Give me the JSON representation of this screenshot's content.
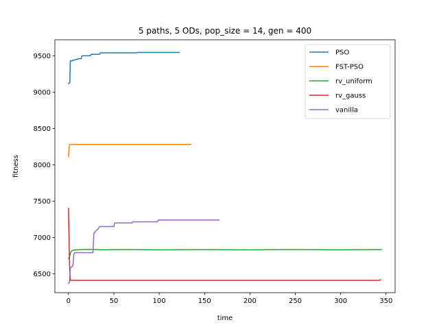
{
  "chart_data": {
    "type": "line",
    "title": "5 paths, 5 ODs, pop_size = 14, gen = 400",
    "xlabel": "time",
    "ylabel": "fitness",
    "xlim": [
      -15,
      360
    ],
    "ylim": [
      6240,
      9720
    ],
    "xticks": [
      0,
      50,
      100,
      150,
      200,
      250,
      300,
      350
    ],
    "yticks": [
      6500,
      7000,
      7500,
      8000,
      8500,
      9000,
      9500
    ],
    "grid": false,
    "legend_position": "top-right",
    "series": [
      {
        "name": "PSO",
        "color": "#1f77b4",
        "points": [
          [
            0,
            9120
          ],
          [
            1,
            9120
          ],
          [
            1.5,
            9140
          ],
          [
            2,
            9430
          ],
          [
            4,
            9430
          ],
          [
            5,
            9440
          ],
          [
            7,
            9440
          ],
          [
            8,
            9450
          ],
          [
            10,
            9450
          ],
          [
            11,
            9460
          ],
          [
            14,
            9460
          ],
          [
            15,
            9500
          ],
          [
            24,
            9500
          ],
          [
            25,
            9520
          ],
          [
            34,
            9520
          ],
          [
            35,
            9540
          ],
          [
            75,
            9540
          ],
          [
            76,
            9545
          ],
          [
            122,
            9545
          ]
        ]
      },
      {
        "name": "FST-PSO",
        "color": "#ff7f0e",
        "points": [
          [
            0,
            8110
          ],
          [
            0.5,
            8200
          ],
          [
            1,
            8270
          ],
          [
            2,
            8280
          ],
          [
            135,
            8280
          ]
        ]
      },
      {
        "name": "rv_uniform",
        "color": "#2ca02c",
        "points": [
          [
            0,
            6710
          ],
          [
            1,
            6720
          ],
          [
            2,
            6780
          ],
          [
            3,
            6810
          ],
          [
            5,
            6825
          ],
          [
            10,
            6830
          ],
          [
            20,
            6835
          ],
          [
            40,
            6830
          ],
          [
            60,
            6833
          ],
          [
            100,
            6830
          ],
          [
            150,
            6832
          ],
          [
            200,
            6830
          ],
          [
            250,
            6833
          ],
          [
            300,
            6830
          ],
          [
            345,
            6832
          ]
        ]
      },
      {
        "name": "rv_gauss",
        "color": "#d62728",
        "points": [
          [
            0,
            7400
          ],
          [
            0.6,
            7000
          ],
          [
            1.2,
            6600
          ],
          [
            2,
            6410
          ],
          [
            343,
            6410
          ],
          [
            344,
            6420
          ]
        ]
      },
      {
        "name": "vanilla",
        "color": "#9467bd",
        "points": [
          [
            0,
            6370
          ],
          [
            1,
            6380
          ],
          [
            2,
            6580
          ],
          [
            4,
            6600
          ],
          [
            5,
            6620
          ],
          [
            6,
            6780
          ],
          [
            7,
            6790
          ],
          [
            27,
            6790
          ],
          [
            28,
            7060
          ],
          [
            29,
            7070
          ],
          [
            31,
            7100
          ],
          [
            33,
            7120
          ],
          [
            34,
            7150
          ],
          [
            50,
            7150
          ],
          [
            51,
            7200
          ],
          [
            70,
            7200
          ],
          [
            71,
            7215
          ],
          [
            98,
            7215
          ],
          [
            99,
            7240
          ],
          [
            166,
            7240
          ]
        ]
      }
    ]
  }
}
